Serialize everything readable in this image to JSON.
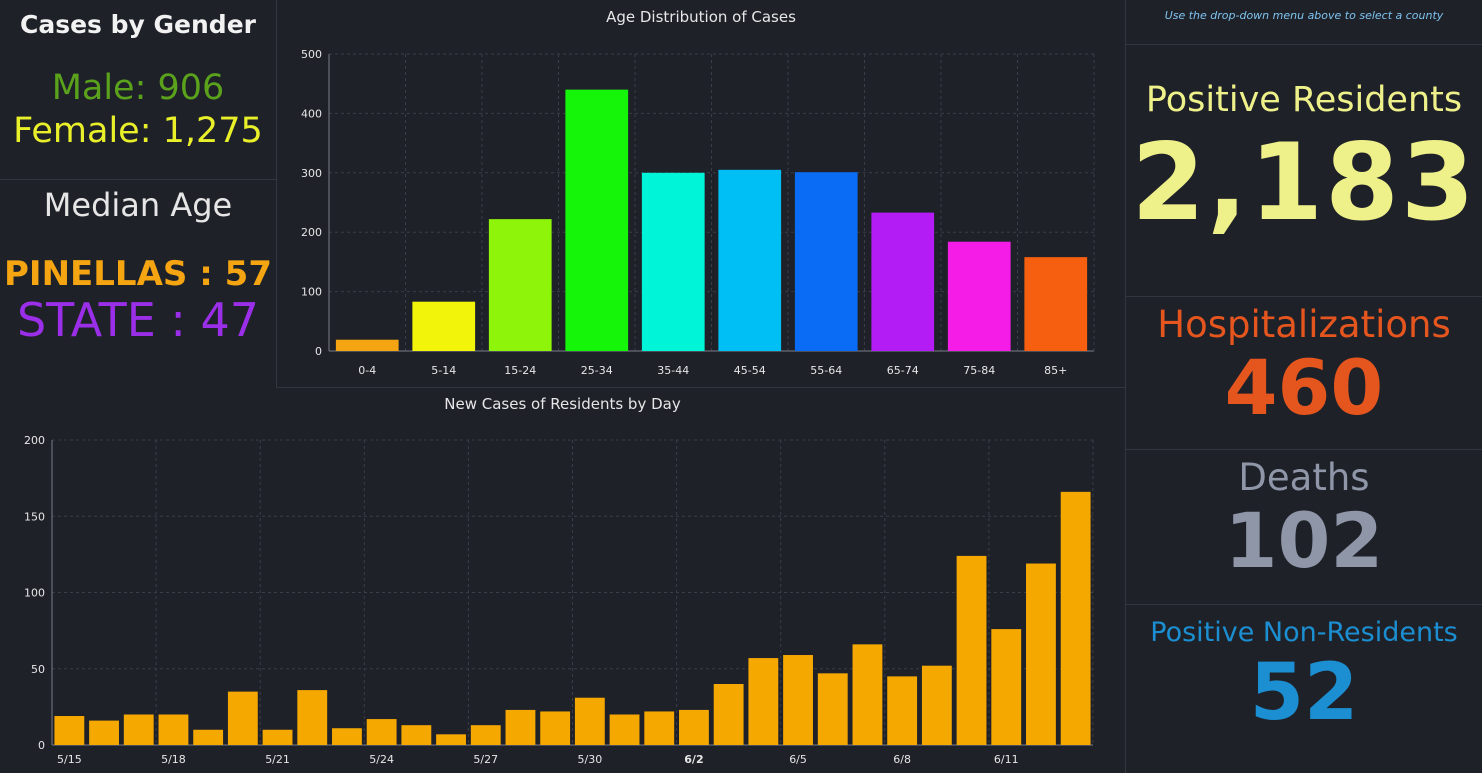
{
  "gender": {
    "title": "Cases by Gender",
    "male": "Male: 906",
    "female": "Female: 1,275"
  },
  "median": {
    "title": "Median Age",
    "county": "PINELLAS : 57",
    "state": "STATE : 47"
  },
  "hint": "Use the drop-down menu above to select a county",
  "stats": {
    "positive_label": "Positive Residents",
    "positive_value": "2,183",
    "hosp_label": "Hospitalizations",
    "hosp_value": "460",
    "deaths_label": "Deaths",
    "deaths_value": "102",
    "nonres_label": "Positive Non-Residents",
    "nonres_value": "52"
  },
  "colors": {
    "male": "#5aa11c",
    "female": "#e9f02a",
    "county": "#f5a511",
    "state": "#9b2ee8",
    "daily_bar": "#f5a800"
  },
  "chart_data": [
    {
      "type": "bar",
      "title": "Age Distribution of Cases",
      "categories": [
        "0-4",
        "5-14",
        "15-24",
        "25-34",
        "35-44",
        "45-54",
        "55-64",
        "65-74",
        "75-84",
        "85+"
      ],
      "values": [
        19,
        83,
        222,
        440,
        300,
        305,
        301,
        233,
        184,
        158
      ],
      "colors": [
        "#f5a511",
        "#f2f50a",
        "#8ef50a",
        "#14f50a",
        "#00f5d8",
        "#00bff5",
        "#0a6cf5",
        "#b31cf5",
        "#f51ce8",
        "#f55f0f"
      ],
      "ylim": [
        0,
        500
      ],
      "yticks": [
        0,
        100,
        200,
        300,
        400,
        500
      ],
      "grid": true
    },
    {
      "type": "bar",
      "title": "New Cases of Residents by Day",
      "categories": [
        "5/15",
        "5/16",
        "5/17",
        "5/18",
        "5/19",
        "5/20",
        "5/21",
        "5/22",
        "5/23",
        "5/24",
        "5/25",
        "5/26",
        "5/27",
        "5/28",
        "5/29",
        "5/30",
        "5/31",
        "6/1",
        "6/2",
        "6/3",
        "6/4",
        "6/5",
        "6/6",
        "6/7",
        "6/8",
        "6/9",
        "6/10",
        "6/11",
        "6/12",
        "6/13"
      ],
      "values": [
        19,
        16,
        20,
        20,
        10,
        35,
        10,
        36,
        11,
        17,
        13,
        7,
        13,
        23,
        22,
        31,
        20,
        22,
        23,
        40,
        57,
        59,
        47,
        66,
        45,
        52,
        124,
        76,
        119,
        166
      ],
      "tick_labels": [
        "5/15",
        "5/18",
        "5/21",
        "5/24",
        "5/27",
        "5/30",
        "6/2",
        "6/5",
        "6/8",
        "6/11"
      ],
      "ylim": [
        0,
        200
      ],
      "yticks": [
        0,
        50,
        100,
        150,
        200
      ],
      "grid": true
    }
  ]
}
